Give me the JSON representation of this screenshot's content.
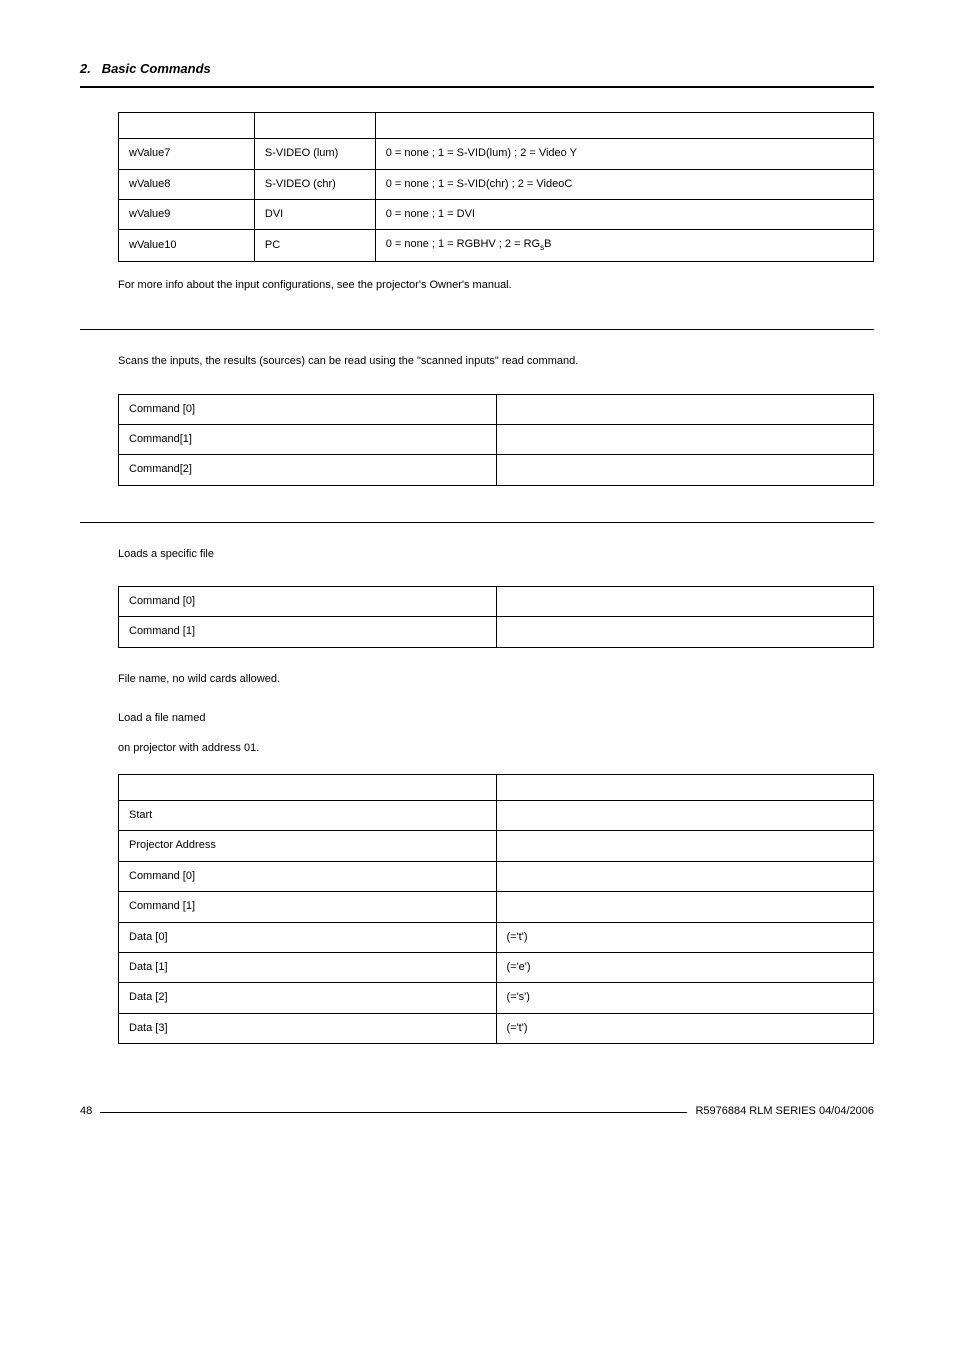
{
  "header": {
    "section_number": "2.",
    "section_title": "Basic Commands"
  },
  "table1": {
    "columns": [
      "",
      "",
      ""
    ],
    "rows": [
      [
        "wValue7",
        "S-VIDEO (lum)",
        "0 = none ; 1 = S-VID(lum) ; 2 = Video Y"
      ],
      [
        "wValue8",
        "S-VIDEO (chr)",
        "0 = none ; 1 = S-VID(chr) ; 2 = VideoC"
      ],
      [
        "wValue9",
        "DVI",
        "0 = none ; 1 = DVI"
      ],
      [
        "wValue10",
        "PC",
        "0 = none ; 1 = RGBHV ; 2 = RG_sB"
      ]
    ]
  },
  "p_table1_after": "For more info about the input configurations, see the projector's Owner's manual.",
  "p_scans": "Scans the inputs, the results (sources) can be read using the \"scanned inputs\" read command.",
  "table2": {
    "rows": [
      [
        "Command [0]",
        ""
      ],
      [
        "Command[1]",
        ""
      ],
      [
        "Command[2]",
        ""
      ]
    ]
  },
  "p_loads": "Loads a specific file",
  "table3": {
    "rows": [
      [
        "Command [0]",
        ""
      ],
      [
        "Command [1]",
        ""
      ]
    ]
  },
  "p_filename": "File name, no wild cards allowed.",
  "p_loadfile": "Load a file named",
  "p_onproj": "on projector with address 01.",
  "table4": {
    "rows": [
      [
        "",
        ""
      ],
      [
        "Start",
        ""
      ],
      [
        "Projector Address",
        ""
      ],
      [
        "Command [0]",
        ""
      ],
      [
        "Command [1]",
        ""
      ],
      [
        "Data [0]",
        "(='t')"
      ],
      [
        "Data [1]",
        "(='e')"
      ],
      [
        "Data [2]",
        "(='s')"
      ],
      [
        "Data [3]",
        "(='t')"
      ]
    ]
  },
  "footer": {
    "page": "48",
    "doc": "R5976884  RLM SERIES  04/04/2006"
  }
}
